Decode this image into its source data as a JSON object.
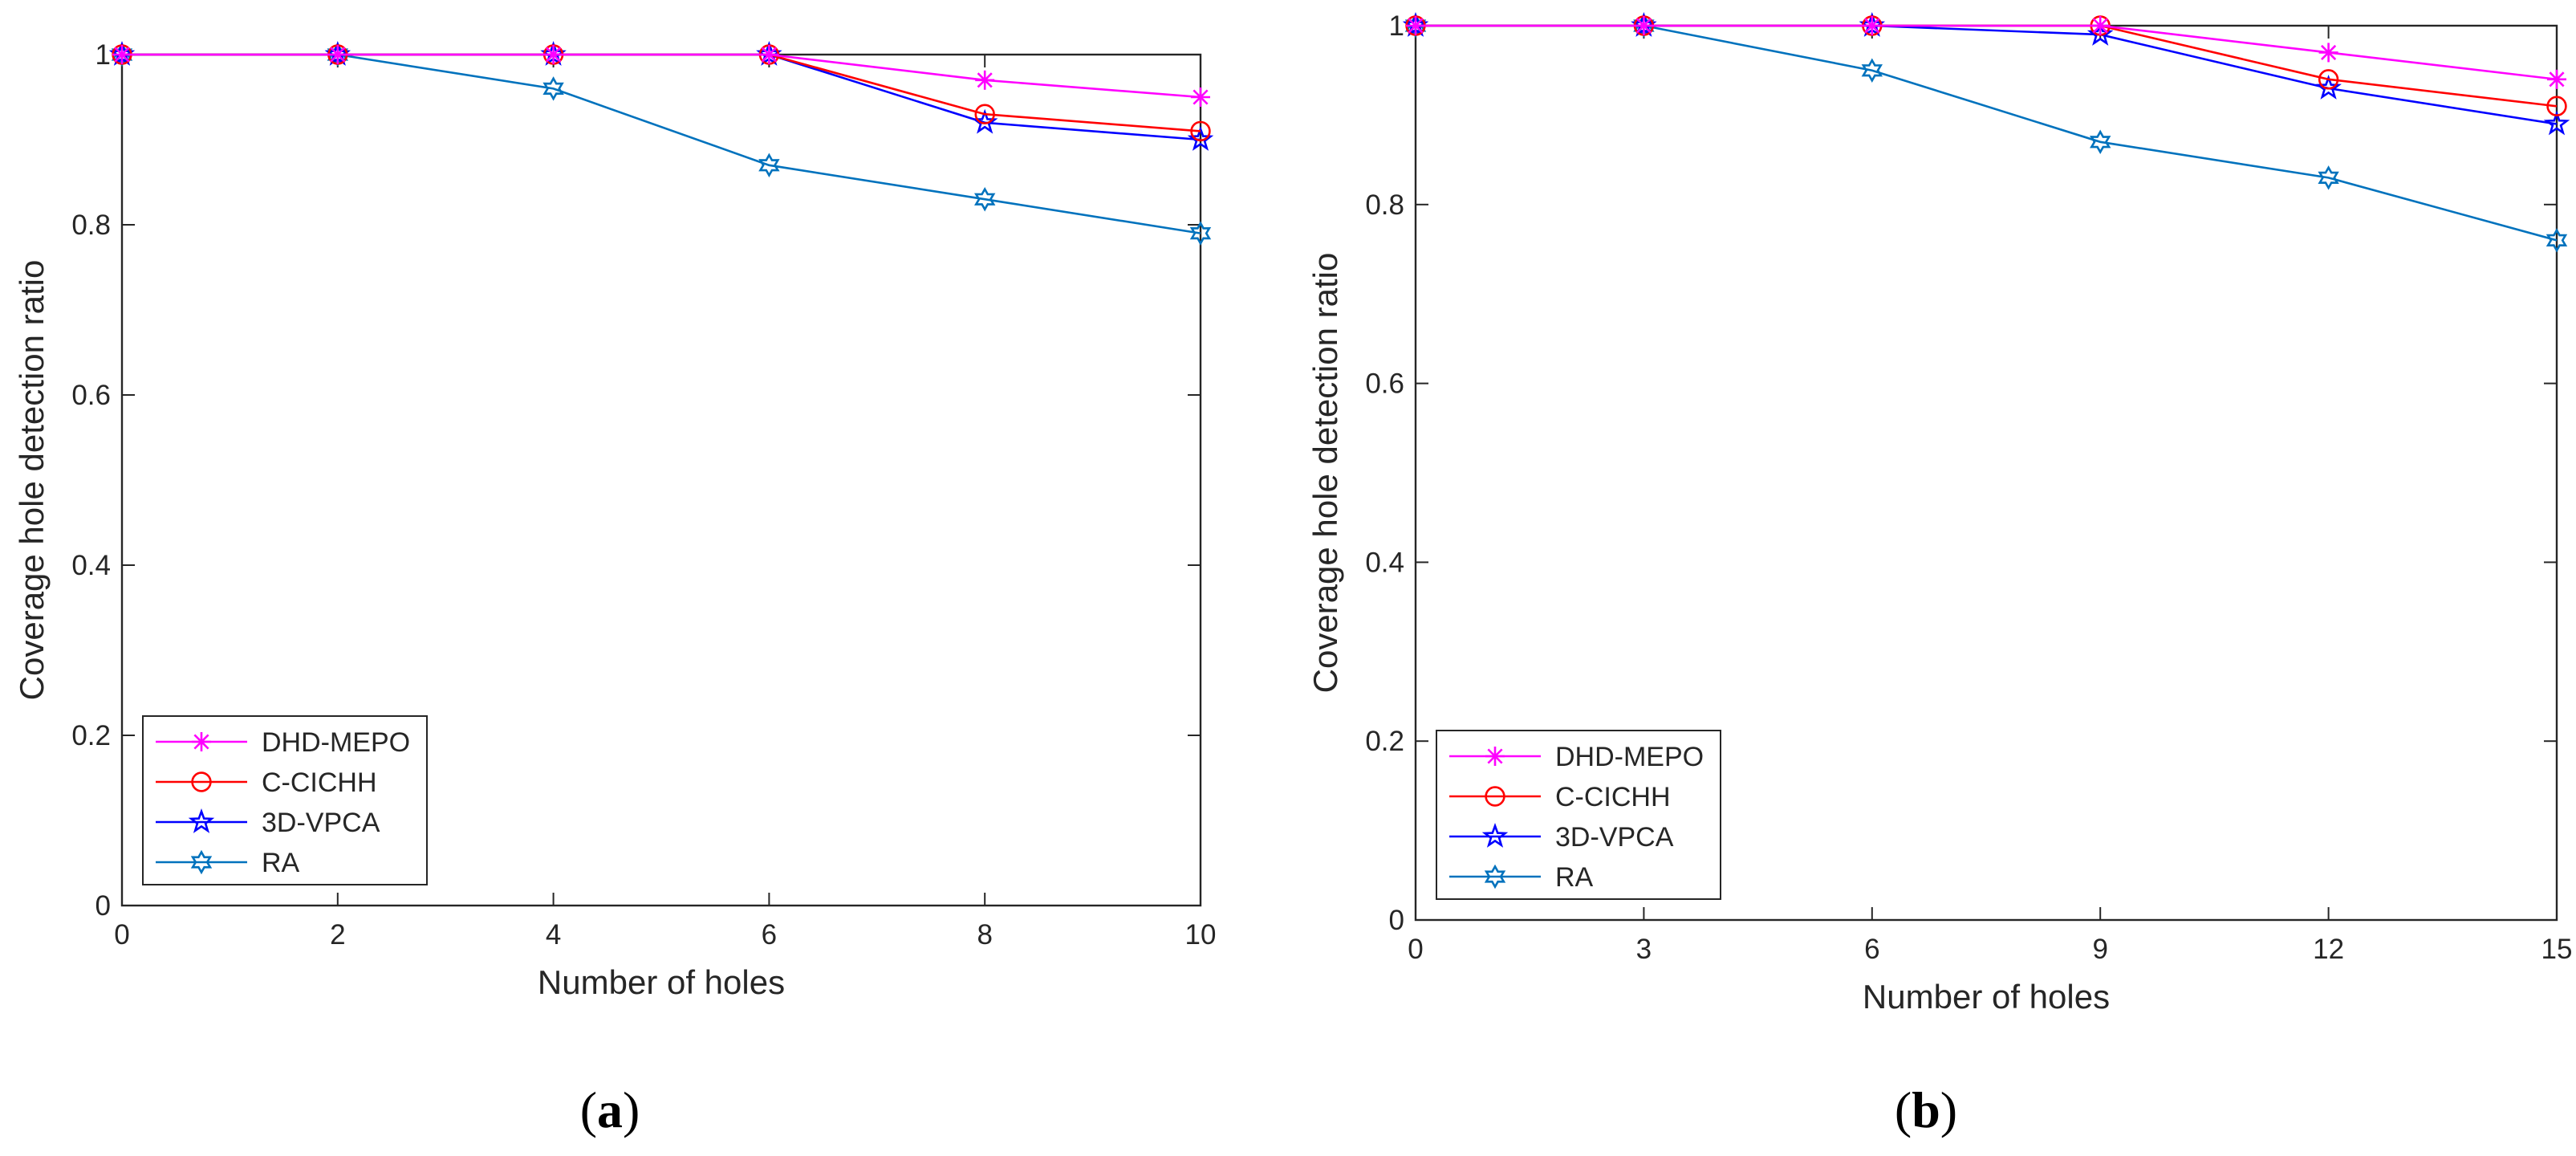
{
  "panels": [
    {
      "label_open": "(",
      "label_letter": "a",
      "label_close": ")"
    },
    {
      "label_open": "(",
      "label_letter": "b",
      "label_close": ")"
    }
  ],
  "chart_data": [
    {
      "type": "line",
      "xlabel": "Number of holes",
      "ylabel": "Coverage hole detection ratio",
      "xlim": [
        0,
        10
      ],
      "ylim": [
        0,
        1
      ],
      "xticks": [
        0,
        2,
        4,
        6,
        8,
        10
      ],
      "yticks": [
        0,
        0.2,
        0.4,
        0.6,
        0.8,
        1
      ],
      "xtick_labels": [
        "0",
        "2",
        "4",
        "6",
        "8",
        "10"
      ],
      "ytick_labels": [
        "0",
        "0.2",
        "0.4",
        "0.6",
        "0.8",
        "1"
      ],
      "grid": false,
      "legend_position": "bottom-left",
      "x": [
        0,
        2,
        4,
        6,
        8,
        10
      ],
      "series": [
        {
          "name": "DHD-MEPO",
          "values": [
            1,
            1,
            1,
            1,
            0.97,
            0.95
          ],
          "color": "#ff00ff",
          "marker": "asterisk"
        },
        {
          "name": "C-CICHH",
          "values": [
            1,
            1,
            1,
            1,
            0.93,
            0.91
          ],
          "color": "#ff0000",
          "marker": "circle"
        },
        {
          "name": "3D-VPCA",
          "values": [
            1,
            1,
            1,
            1,
            0.92,
            0.9
          ],
          "color": "#0000ff",
          "marker": "pentagram"
        },
        {
          "name": "RA",
          "values": [
            1,
            1,
            0.96,
            0.87,
            0.83,
            0.79
          ],
          "color": "#0072bd",
          "marker": "hexagram"
        }
      ]
    },
    {
      "type": "line",
      "xlabel": "Number of holes",
      "ylabel": "Coverage hole detection ratio",
      "xlim": [
        0,
        15
      ],
      "ylim": [
        0,
        1
      ],
      "xticks": [
        0,
        3,
        6,
        9,
        12,
        15
      ],
      "yticks": [
        0,
        0.2,
        0.4,
        0.6,
        0.8,
        1
      ],
      "xtick_labels": [
        "0",
        "3",
        "6",
        "9",
        "12",
        "15"
      ],
      "ytick_labels": [
        "0",
        "0.2",
        "0.4",
        "0.6",
        "0.8",
        "1"
      ],
      "grid": false,
      "legend_position": "bottom-left",
      "x": [
        0,
        3,
        6,
        9,
        12,
        15
      ],
      "series": [
        {
          "name": "DHD-MEPO",
          "values": [
            1,
            1,
            1,
            1,
            0.97,
            0.94
          ],
          "color": "#ff00ff",
          "marker": "asterisk"
        },
        {
          "name": "C-CICHH",
          "values": [
            1,
            1,
            1,
            1,
            0.94,
            0.91
          ],
          "color": "#ff0000",
          "marker": "circle"
        },
        {
          "name": "3D-VPCA",
          "values": [
            1,
            1,
            1,
            0.99,
            0.93,
            0.89
          ],
          "color": "#0000ff",
          "marker": "pentagram"
        },
        {
          "name": "RA",
          "values": [
            1,
            1,
            0.95,
            0.87,
            0.83,
            0.76
          ],
          "color": "#0072bd",
          "marker": "hexagram"
        }
      ]
    }
  ]
}
